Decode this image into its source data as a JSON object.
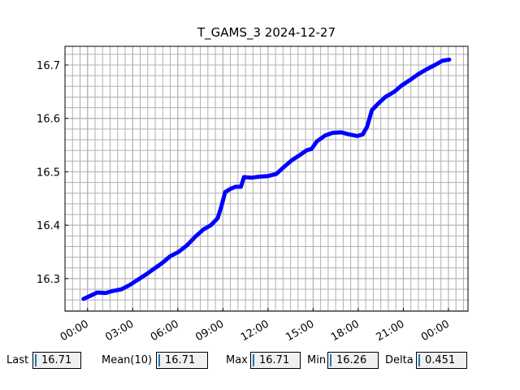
{
  "chart_data": {
    "type": "line",
    "title": "T_GAMS_3 2024-12-27",
    "x": [
      -0.27,
      0.2,
      0.65,
      1.2,
      1.7,
      2.25,
      2.8,
      3.35,
      3.9,
      4.4,
      5.0,
      5.5,
      6.05,
      6.6,
      7.15,
      7.7,
      8.2,
      8.65,
      8.9,
      9.15,
      9.5,
      9.85,
      10.2,
      10.4,
      10.9,
      11.45,
      12.0,
      12.55,
      13.1,
      13.6,
      14.15,
      14.55,
      14.9,
      15.25,
      15.8,
      16.3,
      16.85,
      17.4,
      17.95,
      18.3,
      18.6,
      18.9,
      19.3,
      19.8,
      20.4,
      20.9,
      21.45,
      22.0,
      22.55,
      23.1,
      23.6,
      24.05
    ],
    "series": [
      {
        "color": "#0000ff",
        "values": [
          16.262,
          16.268,
          16.274,
          16.273,
          16.277,
          16.28,
          16.288,
          16.298,
          16.308,
          16.318,
          16.33,
          16.342,
          16.35,
          16.362,
          16.378,
          16.392,
          16.4,
          16.413,
          16.435,
          16.462,
          16.468,
          16.472,
          16.472,
          16.49,
          16.489,
          16.491,
          16.492,
          16.496,
          16.51,
          16.522,
          16.532,
          16.54,
          16.543,
          16.557,
          16.568,
          16.573,
          16.574,
          16.57,
          16.567,
          16.57,
          16.585,
          16.615,
          16.627,
          16.64,
          16.65,
          16.662,
          16.672,
          16.683,
          16.692,
          16.7,
          16.708,
          16.71
        ]
      }
    ],
    "xlim": [
      -1.5,
      25.3
    ],
    "xticks": [
      {
        "value": 0,
        "label": "00:00"
      },
      {
        "value": 3,
        "label": "03:00"
      },
      {
        "value": 6,
        "label": "06:00"
      },
      {
        "value": 9,
        "label": "09:00"
      },
      {
        "value": 12,
        "label": "12:00"
      },
      {
        "value": 15,
        "label": "15:00"
      },
      {
        "value": 18,
        "label": "18:00"
      },
      {
        "value": 21,
        "label": "21:00"
      },
      {
        "value": 24,
        "label": "00:00"
      }
    ],
    "ylim": [
      16.239,
      16.735
    ],
    "yticks": [
      16.3,
      16.4,
      16.5,
      16.6,
      16.7
    ],
    "grid": true
  },
  "controls": [
    {
      "label": "Last",
      "value": "16.71"
    },
    {
      "label": "Mean(10)",
      "value": "16.71"
    },
    {
      "label": "Max",
      "value": "16.71"
    },
    {
      "label": "Min",
      "value": "16.26"
    },
    {
      "label": "Delta",
      "value": "0.451"
    }
  ]
}
